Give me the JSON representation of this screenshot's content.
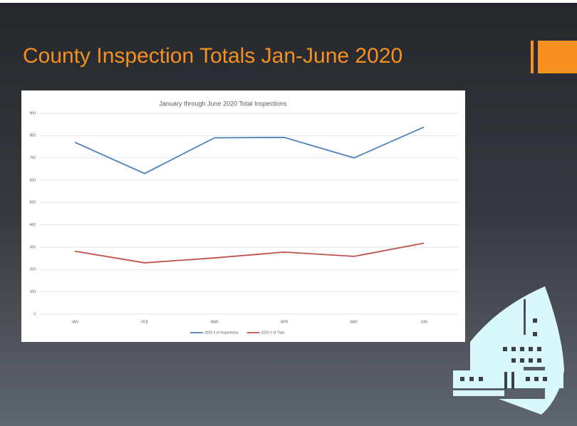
{
  "slide_title": "County Inspection Totals Jan-June 2020",
  "chart_data": {
    "type": "line",
    "title": "January through June 2020 Total Inspections",
    "categories": [
      "JAN",
      "FEB",
      "MAR",
      "APR",
      "MAY",
      "JUN"
    ],
    "series": [
      {
        "name": "2020 # of Inspections",
        "color": "#4f81bd",
        "values": [
          770,
          630,
          790,
          792,
          700,
          838
        ]
      },
      {
        "name": "2020 # of Trips",
        "color": "#c0504d",
        "values": [
          282,
          230,
          252,
          278,
          259,
          318
        ]
      }
    ],
    "ylim": [
      0,
      900
    ],
    "yticks": [
      0,
      100,
      200,
      300,
      400,
      500,
      600,
      700,
      800,
      900
    ],
    "grid": true,
    "legend": "bottom"
  }
}
